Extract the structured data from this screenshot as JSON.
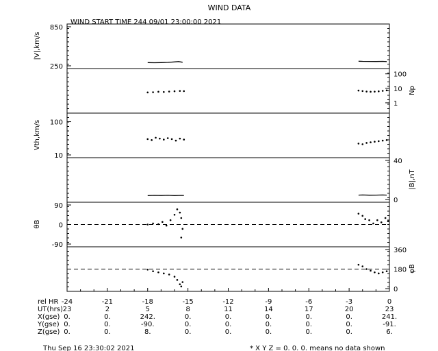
{
  "title": "WIND DATA",
  "subtitle": "WIND START TIME 244 09/01 23:00:00 2021",
  "footer": {
    "timestamp": "Thu Sep 16 23:30:02 2021",
    "note": "* X Y Z = 0. 0. 0. means no data shown"
  },
  "chart_data": [
    {
      "type": "line",
      "panel": "speed",
      "ylabel": "|V|,km/s",
      "ylim": [
        250,
        850
      ],
      "yticks": [
        "850",
        "250"
      ],
      "axis_side": "left",
      "grid": false,
      "series": [
        {
          "x": [
            -18.0,
            -17.5,
            -17.0,
            -16.5,
            -16.0,
            -15.7,
            -15.4
          ],
          "values": [
            300,
            297,
            300,
            303,
            310,
            315,
            305
          ]
        },
        {
          "x": [
            -2.3,
            -2.0,
            -1.5,
            -1.0,
            -0.5,
            -0.2
          ],
          "values": [
            320,
            318,
            317,
            316,
            318,
            315
          ]
        }
      ]
    },
    {
      "type": "scatter",
      "panel": "density",
      "ylabel": "Np",
      "scale": "log",
      "ylim": [
        0.3,
        150
      ],
      "yticks": [
        "100",
        "10",
        "1"
      ],
      "axis_side": "right",
      "grid": false,
      "series": [
        {
          "x": [
            -18.0,
            -17.6,
            -17.2,
            -16.8,
            -16.4,
            -16.0,
            -15.6,
            -15.3
          ],
          "values": [
            5.2,
            5.4,
            5.8,
            5.6,
            6.0,
            6.3,
            6.6,
            6.4
          ]
        },
        {
          "x": [
            -2.3,
            -2.0,
            -1.7,
            -1.4,
            -1.1,
            -0.8,
            -0.5,
            -0.2
          ],
          "values": [
            7.0,
            6.5,
            6.0,
            5.8,
            5.9,
            6.2,
            6.7,
            7.2
          ]
        }
      ]
    },
    {
      "type": "scatter",
      "panel": "thermal",
      "ylabel": "Vth,km/s",
      "scale": "log",
      "ylim": [
        10,
        150
      ],
      "yticks": [
        "100",
        "10"
      ],
      "axis_side": "left",
      "grid": false,
      "series": [
        {
          "x": [
            -18.0,
            -17.7,
            -17.4,
            -17.1,
            -16.8,
            -16.5,
            -16.2,
            -15.9,
            -15.6,
            -15.3
          ],
          "values": [
            30,
            28,
            33,
            31,
            29,
            32,
            30,
            27,
            31,
            29
          ]
        },
        {
          "x": [
            -2.3,
            -2.0,
            -1.7,
            -1.4,
            -1.1,
            -0.8,
            -0.5,
            -0.2
          ],
          "values": [
            22,
            21,
            23,
            24,
            25,
            26,
            27,
            28
          ]
        }
      ]
    },
    {
      "type": "line",
      "panel": "field",
      "ylabel": "|B|,nT",
      "ylim": [
        0,
        40
      ],
      "yticks": [
        "40",
        "0"
      ],
      "axis_side": "right",
      "grid": false,
      "series": [
        {
          "x": [
            -18.0,
            -17.5,
            -17.0,
            -16.5,
            -16.0,
            -15.5,
            -15.3
          ],
          "values": [
            4,
            4.2,
            4.1,
            4.3,
            4.0,
            4.2,
            4.1
          ]
        },
        {
          "x": [
            -2.3,
            -2.0,
            -1.5,
            -1.0,
            -0.5,
            -0.2
          ],
          "values": [
            4.5,
            4.6,
            4.4,
            4.5,
            4.6,
            4.5
          ]
        }
      ]
    },
    {
      "type": "scatter",
      "panel": "theta",
      "ylabel": "θB",
      "ylim": [
        -90,
        90
      ],
      "yticks": [
        "90",
        "0",
        "-90"
      ],
      "axis_side": "left",
      "reference_line": 0,
      "grid": false,
      "series": [
        {
          "x": [
            -18.0,
            -17.6,
            -17.2,
            -16.9,
            -16.6,
            -16.3,
            -16.0,
            -15.8,
            -15.6,
            -15.5,
            -15.4,
            -15.5
          ],
          "values": [
            0,
            5,
            2,
            12,
            -5,
            20,
            45,
            70,
            55,
            30,
            -20,
            -60
          ]
        },
        {
          "x": [
            -2.3,
            -2.0,
            -1.8,
            -1.5,
            -1.2,
            -0.9,
            -0.6,
            -0.3,
            -0.1
          ],
          "values": [
            50,
            40,
            25,
            20,
            5,
            20,
            10,
            30,
            15
          ]
        }
      ]
    },
    {
      "type": "scatter",
      "panel": "phi",
      "ylabel": "φB",
      "ylim": [
        0,
        360
      ],
      "yticks": [
        "360",
        "180",
        "0"
      ],
      "axis_side": "right",
      "reference_line": 180,
      "grid": false,
      "series": [
        {
          "x": [
            -18.0,
            -17.6,
            -17.2,
            -16.8,
            -16.4,
            -16.0,
            -15.8,
            -15.6,
            -15.5,
            -15.4
          ],
          "values": [
            175,
            160,
            150,
            140,
            130,
            110,
            80,
            40,
            20,
            60
          ]
        },
        {
          "x": [
            -2.3,
            -2.0,
            -1.7,
            -1.4,
            -1.1,
            -0.8,
            -0.5,
            -0.2
          ],
          "values": [
            220,
            205,
            180,
            165,
            150,
            140,
            150,
            160
          ]
        }
      ]
    }
  ],
  "x_axis": {
    "xlim": [
      -24,
      0
    ],
    "tick_values": [
      -24,
      -21,
      -18,
      -15,
      -12,
      -9,
      -6,
      -3,
      0
    ],
    "rows": [
      {
        "label": "rel HR",
        "values": [
          "-24",
          "-21",
          "-18",
          "-15",
          "-12",
          "-9",
          "-6",
          "-3",
          "0"
        ]
      },
      {
        "label": "UT(hrs)",
        "values": [
          "23",
          "2",
          "5",
          "8",
          "11",
          "14",
          "17",
          "20",
          "23"
        ]
      },
      {
        "label": "X(gse)",
        "values": [
          "0.",
          "0.",
          "242.",
          "0.",
          "0.",
          "0.",
          "0.",
          "0.",
          "241."
        ]
      },
      {
        "label": "Y(gse)",
        "values": [
          "0.",
          "0.",
          "-90.",
          "0.",
          "0.",
          "0.",
          "0.",
          "0.",
          "-91."
        ]
      },
      {
        "label": "Z(gse)",
        "values": [
          "0.",
          "0.",
          "8.",
          "0.",
          "0.",
          "0.",
          "0.",
          "0.",
          "6."
        ]
      }
    ]
  }
}
